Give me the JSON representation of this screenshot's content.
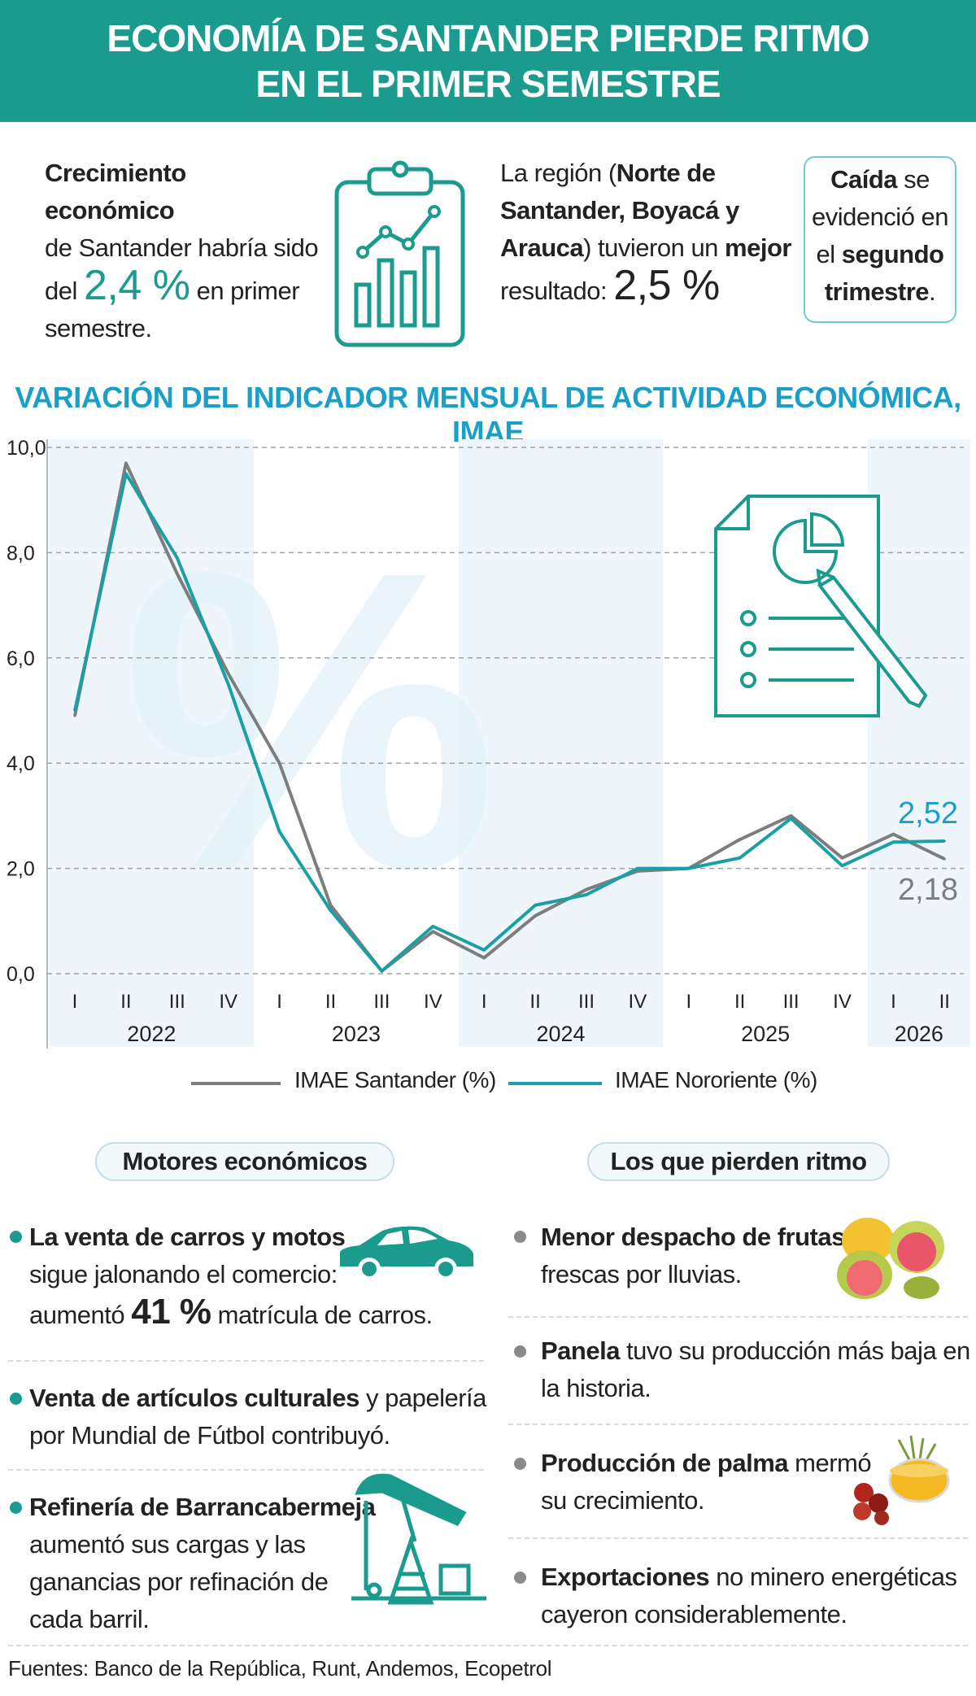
{
  "header": {
    "line1": "ECONOMÍA DE SANTANDER PIERDE RITMO",
    "line2": "EN EL PRIMER SEMESTRE"
  },
  "intro_left": {
    "bold": "Crecimiento económico",
    "t1": "de Santander habría sido",
    "t2": "del ",
    "value": "2,4 %",
    "t3": " en primer",
    "t4": "semestre."
  },
  "intro_mid": {
    "t1": "La región (",
    "b1": "Norte de",
    "b2": "Santander, Boyacá y",
    "b3": "Arauca",
    "t2": ") tuvieron un ",
    "b4": "mejor",
    "t3": "resultado: ",
    "value": "2,5 %"
  },
  "callout": {
    "b1": "Caída",
    "t1": " se",
    "t2": "evidenció en",
    "t3": "el ",
    "b2": "segundo",
    "b3": "trimestre",
    "t4": "."
  },
  "chart_title": "VARIACIÓN DEL INDICADOR MENSUAL DE ACTIVIDAD ECONÓMICA, IMAE",
  "chart_data": {
    "type": "line",
    "x": [
      "I",
      "II",
      "III",
      "IV",
      "I",
      "II",
      "III",
      "IV",
      "I",
      "II",
      "III",
      "IV",
      "I",
      "II",
      "III",
      "IV",
      "I",
      "II"
    ],
    "years": [
      {
        "label": "2022",
        "start": 0,
        "end": 3
      },
      {
        "label": "2023",
        "start": 4,
        "end": 7
      },
      {
        "label": "2024",
        "start": 8,
        "end": 11
      },
      {
        "label": "2025",
        "start": 12,
        "end": 15
      },
      {
        "label": "2026",
        "start": 16,
        "end": 17
      }
    ],
    "ylim": [
      0,
      10
    ],
    "yticks": [
      "0,0",
      "2,0",
      "4,0",
      "6,0",
      "8,0",
      "10,0"
    ],
    "grid": true,
    "series": [
      {
        "name": "IMAE Santander (%)",
        "color": "#7d7d7d",
        "values": [
          4.9,
          9.7,
          7.6,
          5.7,
          4.0,
          1.3,
          0.05,
          0.8,
          0.3,
          1.1,
          1.6,
          1.95,
          2.0,
          2.55,
          3.0,
          2.2,
          2.65,
          2.18
        ]
      },
      {
        "name": "IMAE Nororiente (%)",
        "color": "#1a9fa5",
        "values": [
          5.0,
          9.5,
          7.9,
          5.5,
          2.7,
          1.2,
          0.05,
          0.9,
          0.45,
          1.3,
          1.5,
          2.0,
          2.0,
          2.2,
          2.95,
          2.05,
          2.5,
          2.52
        ]
      }
    ],
    "annotations": [
      {
        "text": "2,52",
        "series": 1,
        "color": "#1aa0c8"
      },
      {
        "text": "2,18",
        "series": 0,
        "color": "#7d7d7d"
      }
    ]
  },
  "legend": {
    "santander": "IMAE Santander (%)",
    "nororiente": "IMAE Nororiente (%)"
  },
  "motores": {
    "title": "Motores económicos",
    "items": [
      {
        "b": "La venta de carros y motos",
        "t1": "sigue jalonando el comercio:",
        "t2": "aumentó ",
        "v": "41 %",
        "t3": " matrícula de carros."
      },
      {
        "b": "Venta de artículos culturales",
        "t1": " y papelería",
        "t2": "por Mundial de Fútbol contribuyó."
      },
      {
        "b": "Refinería de Barrancabermeja",
        "t1": " aumentó sus cargas y las",
        "t2": "ganancias por refinación de",
        "t3": "cada barril."
      }
    ]
  },
  "pierden": {
    "title": "Los que pierden ritmo",
    "items": [
      {
        "b": "Menor despacho de frutas",
        "t1": "frescas por lluvias."
      },
      {
        "b": "Panela",
        "t1": " tuvo su producción más baja en",
        "t2": "la historia."
      },
      {
        "b": "Producción de palma",
        "t1": " mermó",
        "t2": "su crecimiento."
      },
      {
        "b": "Exportaciones",
        "t1": " no minero energéticas",
        "t2": "cayeron considerablemente."
      }
    ]
  },
  "source": "Fuentes: Banco de la República, Runt, Andemos, Ecopetrol",
  "colors": {
    "teal": "#1a9b8e",
    "chart_title": "#1aa0c8",
    "gray_series": "#7d7d7d",
    "teal_series": "#1a9fa5"
  },
  "icons": [
    "clipboard-chart-icon",
    "report-pencil-icon",
    "car-icon",
    "oil-pump-icon",
    "fruit-icon",
    "palm-oil-icon"
  ]
}
